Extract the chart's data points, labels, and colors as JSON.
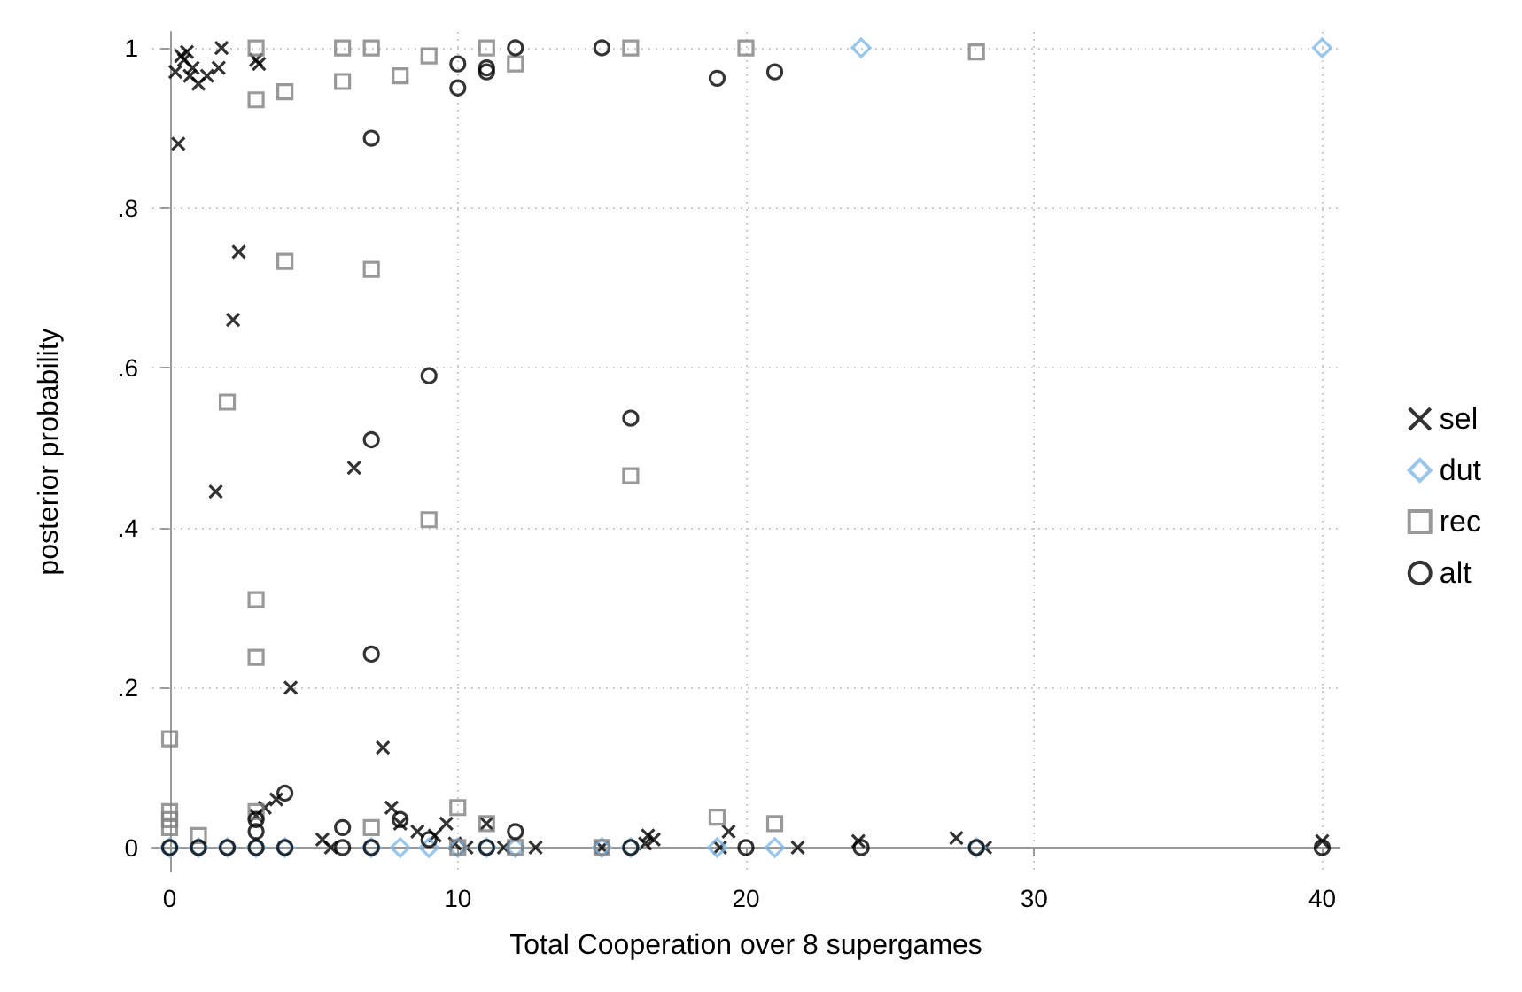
{
  "chart_data": {
    "type": "scatter",
    "xlabel": "Total Cooperation over 8 supergames",
    "ylabel": "posterior probability",
    "xlim": [
      -0.6,
      40.6
    ],
    "ylim": [
      -0.03,
      1.02
    ],
    "xticks": [
      0,
      10,
      20,
      30,
      40
    ],
    "yticks": [
      0,
      {
        "value": 0.2,
        "label": ".2"
      },
      {
        "value": 0.4,
        "label": ".4"
      },
      {
        "value": 0.6,
        "label": ".6"
      },
      {
        "value": 0.8,
        "label": ".8"
      },
      1
    ],
    "grid": true,
    "legend": "right",
    "series": [
      {
        "name": "sel",
        "color": "#000000",
        "marker": "cross",
        "x": [
          0.2,
          0.4,
          0.5,
          0.6,
          0.8,
          0.7,
          1,
          1.3,
          0.3,
          1.7,
          1.8,
          3,
          3.1,
          1.6,
          2.2,
          2.4,
          4.2,
          6.4,
          7.4,
          3,
          3.3,
          3.7,
          5.3,
          5.6,
          7.7,
          8,
          8.6,
          9.2,
          9.6,
          9.9,
          10.3,
          11,
          11.6,
          12.7,
          15,
          16.8,
          16.6,
          16.5,
          19.4,
          19.1,
          21.8,
          23.9,
          27.3,
          28.3,
          40
        ],
        "values": [
          0.97,
          0.99,
          0.985,
          0.995,
          0.975,
          0.965,
          0.955,
          0.965,
          0.88,
          0.975,
          1,
          0.985,
          0.98,
          0.445,
          0.66,
          0.745,
          0.2,
          0.475,
          0.125,
          0.04,
          0.05,
          0.06,
          0.01,
          0,
          0.05,
          0.03,
          0.02,
          0.015,
          0.03,
          0.005,
          0,
          0.03,
          0,
          0,
          0,
          0.01,
          0.015,
          0.005,
          0.02,
          0,
          0,
          0.008,
          0.012,
          0,
          0.008
        ]
      },
      {
        "name": "dut",
        "color": "#7fb8e8",
        "marker": "diamond",
        "x": [
          0,
          1,
          2,
          3,
          4,
          7,
          8,
          9,
          10,
          11,
          12,
          15,
          16,
          19,
          21,
          24,
          28,
          40
        ],
        "values": [
          0,
          0,
          0,
          0,
          0,
          0,
          0,
          0,
          0,
          0,
          0,
          0,
          0,
          0,
          0,
          1,
          0,
          1
        ]
      },
      {
        "name": "rec",
        "color": "#808080",
        "marker": "square",
        "x": [
          3,
          3,
          4,
          6,
          6,
          7,
          8,
          9,
          11,
          12,
          16,
          20,
          28,
          4,
          7,
          2,
          9,
          16,
          3,
          3,
          0,
          0,
          0,
          0,
          1,
          3,
          7,
          10,
          11,
          19,
          21,
          12,
          15,
          10
        ],
        "values": [
          1,
          0.935,
          0.945,
          0.958,
          1,
          1,
          0.965,
          0.99,
          1,
          0.98,
          1,
          1,
          0.995,
          0.733,
          0.723,
          0.557,
          0.41,
          0.465,
          0.31,
          0.238,
          0.136,
          0.045,
          0.035,
          0.025,
          0.015,
          0.045,
          0.025,
          0.05,
          0.03,
          0.038,
          0.03,
          0,
          0,
          0
        ]
      },
      {
        "name": "alt",
        "color": "#000000",
        "marker": "circle",
        "x": [
          7,
          10,
          10,
          11,
          11,
          12,
          15,
          19,
          21,
          9,
          7,
          16,
          7,
          3,
          3,
          4,
          6,
          8,
          9,
          12,
          0,
          1,
          2,
          3,
          4,
          6,
          7,
          11,
          16,
          20,
          24,
          28,
          40
        ],
        "values": [
          0.887,
          0.98,
          0.95,
          0.97,
          0.975,
          1,
          1,
          0.962,
          0.97,
          0.59,
          0.51,
          0.537,
          0.242,
          0.035,
          0.02,
          0.068,
          0.025,
          0.035,
          0.01,
          0.02,
          0,
          0,
          0,
          0,
          0,
          0,
          0,
          0,
          0,
          0,
          0,
          0,
          0
        ]
      }
    ]
  }
}
